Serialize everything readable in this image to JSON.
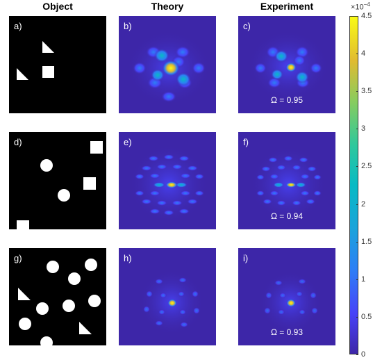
{
  "column_headers": [
    "Object",
    "Theory",
    "Experiment"
  ],
  "panel_labels": [
    "a)",
    "b)",
    "c)",
    "d)",
    "e)",
    "f)",
    "g)",
    "h)",
    "i)"
  ],
  "omega_values": [
    "Ω = 0.95",
    "Ω = 0.94",
    "Ω = 0.93"
  ],
  "colorbar": {
    "exponent_base": "×10",
    "exponent_power": "−4",
    "ticks": [
      "4.5",
      "4",
      "3.5",
      "3",
      "2.5",
      "2",
      "1.5",
      "1",
      "0.5",
      "0"
    ],
    "tick_values": [
      4.5,
      4,
      3.5,
      3,
      2.5,
      2,
      1.5,
      1,
      0.5,
      0
    ],
    "range": [
      0,
      4.5
    ],
    "colormap": "parula"
  },
  "colors": {
    "background_low": "#3d26a8",
    "peak_high": "#f9fb15",
    "object_background": "#000000",
    "object_shapes": "#ffffff"
  }
}
